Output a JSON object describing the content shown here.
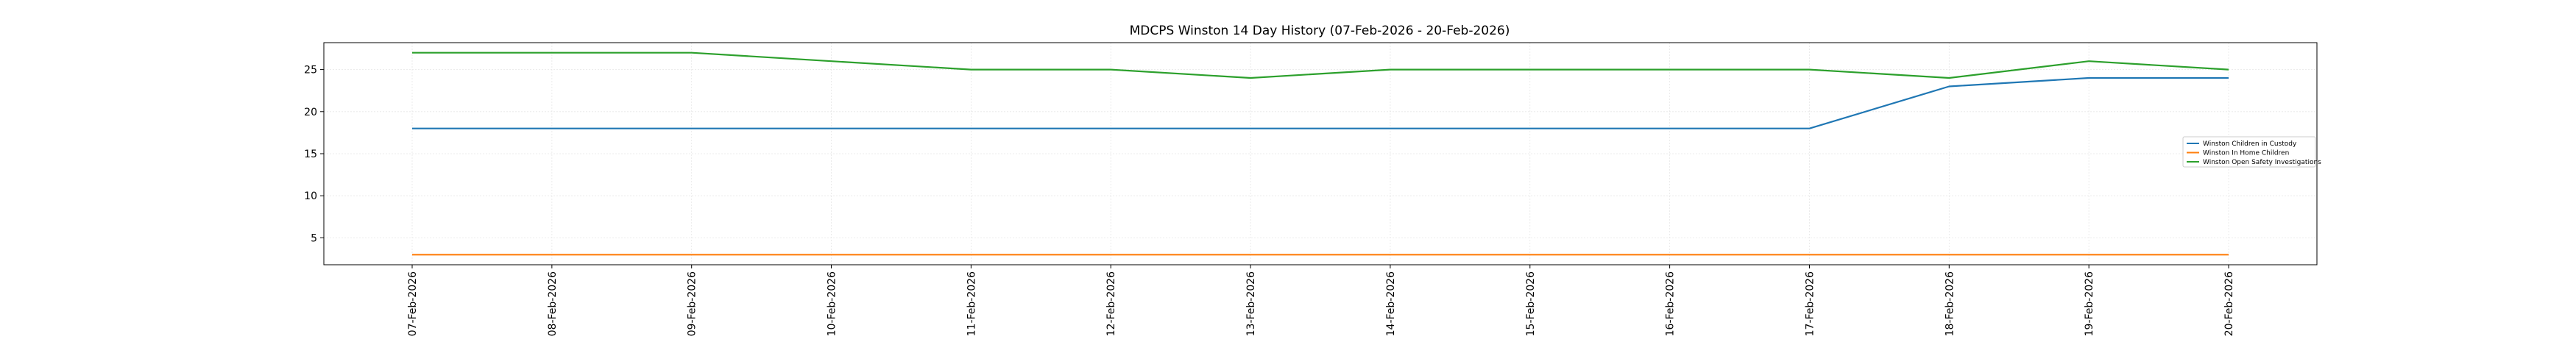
{
  "chart_data": {
    "type": "line",
    "title": "MDCPS Winston 14 Day History (07-Feb-2026 - 20-Feb-2026)",
    "xlabel": "",
    "ylabel": "",
    "categories": [
      "07-Feb-2026",
      "08-Feb-2026",
      "09-Feb-2026",
      "10-Feb-2026",
      "11-Feb-2026",
      "12-Feb-2026",
      "13-Feb-2026",
      "14-Feb-2026",
      "15-Feb-2026",
      "16-Feb-2026",
      "17-Feb-2026",
      "18-Feb-2026",
      "19-Feb-2026",
      "20-Feb-2026"
    ],
    "ylim": [
      1.8,
      28.2
    ],
    "yticks": [
      5,
      10,
      15,
      20,
      25
    ],
    "grid": true,
    "legend_position": "right",
    "series": [
      {
        "name": "Winston Children in Custody",
        "color": "#1f77b4",
        "values": [
          18,
          18,
          18,
          18,
          18,
          18,
          18,
          18,
          18,
          18,
          18,
          23,
          24,
          24
        ]
      },
      {
        "name": "Winston In Home Children",
        "color": "#ff7f0e",
        "values": [
          3,
          3,
          3,
          3,
          3,
          3,
          3,
          3,
          3,
          3,
          3,
          3,
          3,
          3
        ]
      },
      {
        "name": "Winston Open Safety Investigations",
        "color": "#2ca02c",
        "values": [
          27,
          27,
          27,
          26,
          25,
          25,
          24,
          25,
          25,
          25,
          25,
          24,
          26,
          25
        ]
      }
    ]
  }
}
